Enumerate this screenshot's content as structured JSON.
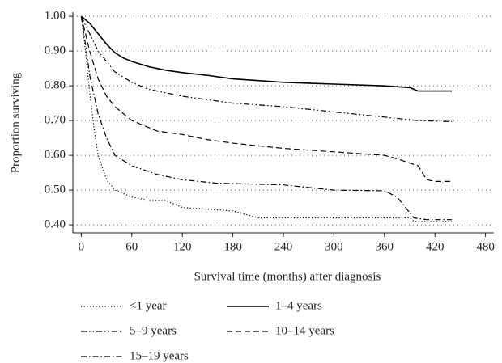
{
  "chart_data": {
    "type": "line",
    "x_label": "Survival time (months) after diagnosis",
    "y_label": "Proportion surviving",
    "xlim": [
      -10,
      490
    ],
    "xticks": [
      0,
      60,
      120,
      180,
      240,
      300,
      360,
      420,
      480
    ],
    "ylim": [
      0.377,
      1.012
    ],
    "yticks": [
      {
        "value": 0.4,
        "label": "0.40"
      },
      {
        "value": 0.5,
        "label": "0.50"
      },
      {
        "value": 0.6,
        "label": "0.60"
      },
      {
        "value": 0.7,
        "label": "0.70"
      },
      {
        "value": 0.8,
        "label": "0.80"
      },
      {
        "value": 0.9,
        "label": "0.90"
      },
      {
        "value": 1.0,
        "label": "1.00"
      }
    ],
    "grid": true,
    "legend": "bottom",
    "series": [
      {
        "name": "<1 year",
        "color": "#000000",
        "linestyle": "dotted",
        "x": [
          0,
          5,
          10,
          15,
          20,
          30,
          40,
          50,
          60,
          80,
          100,
          110,
          120,
          180,
          210,
          300,
          390,
          395,
          440
        ],
        "values": [
          1.0,
          0.9,
          0.78,
          0.68,
          0.6,
          0.53,
          0.5,
          0.49,
          0.48,
          0.47,
          0.47,
          0.46,
          0.45,
          0.44,
          0.42,
          0.42,
          0.42,
          0.41,
          0.41
        ]
      },
      {
        "name": "1–4 years",
        "color": "#000000",
        "linestyle": "solid",
        "x": [
          0,
          10,
          20,
          30,
          40,
          50,
          60,
          80,
          100,
          120,
          150,
          180,
          240,
          300,
          360,
          390,
          400,
          440
        ],
        "values": [
          1.0,
          0.98,
          0.95,
          0.92,
          0.895,
          0.88,
          0.87,
          0.855,
          0.845,
          0.838,
          0.83,
          0.82,
          0.81,
          0.805,
          0.8,
          0.795,
          0.785,
          0.785
        ]
      },
      {
        "name": "5–9 years",
        "color": "#000000",
        "linestyle": "dashdotdot",
        "x": [
          0,
          10,
          20,
          40,
          60,
          80,
          120,
          180,
          240,
          300,
          360,
          400,
          440
        ],
        "values": [
          1.0,
          0.95,
          0.9,
          0.84,
          0.81,
          0.79,
          0.77,
          0.75,
          0.74,
          0.725,
          0.71,
          0.7,
          0.697
        ]
      },
      {
        "name": "10–14 years",
        "color": "#000000",
        "linestyle": "dashed",
        "x": [
          0,
          10,
          20,
          30,
          40,
          60,
          90,
          120,
          150,
          180,
          240,
          300,
          360,
          375,
          400,
          410,
          420,
          440
        ],
        "values": [
          1.0,
          0.9,
          0.82,
          0.77,
          0.74,
          0.7,
          0.67,
          0.66,
          0.645,
          0.635,
          0.62,
          0.61,
          0.6,
          0.59,
          0.57,
          0.53,
          0.525,
          0.525
        ]
      },
      {
        "name": "15–19 years",
        "color": "#000000",
        "linestyle": "dashdot",
        "x": [
          0,
          5,
          10,
          20,
          30,
          40,
          60,
          90,
          120,
          160,
          240,
          300,
          360,
          375,
          385,
          395,
          410,
          440
        ],
        "values": [
          1.0,
          0.92,
          0.83,
          0.72,
          0.65,
          0.6,
          0.57,
          0.545,
          0.53,
          0.52,
          0.515,
          0.5,
          0.498,
          0.48,
          0.45,
          0.42,
          0.415,
          0.415
        ]
      }
    ]
  }
}
